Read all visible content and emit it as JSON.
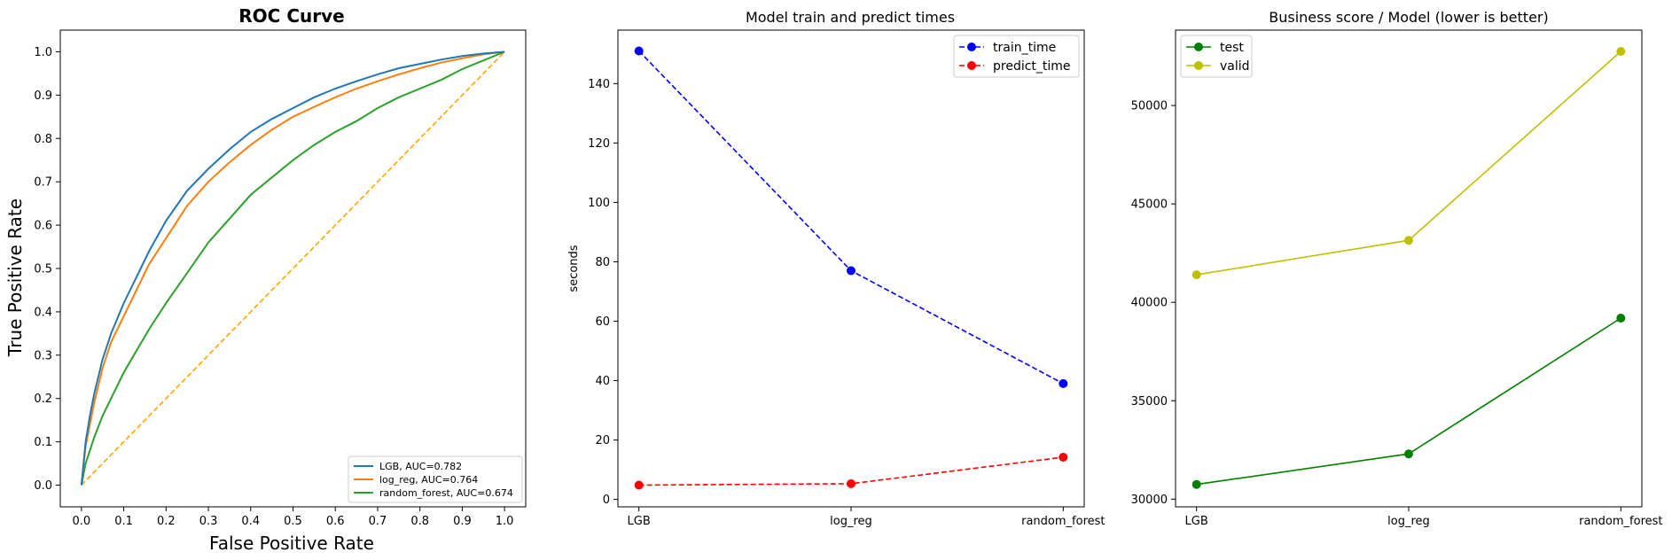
{
  "chart_data": [
    {
      "type": "line",
      "title": "ROC Curve",
      "xlabel": "False Positive Rate",
      "ylabel": "True Positive Rate",
      "xlim": [
        -0.05,
        1.05
      ],
      "ylim": [
        -0.05,
        1.05
      ],
      "xticks": [
        "0.0",
        "0.1",
        "0.2",
        "0.3",
        "0.4",
        "0.5",
        "0.6",
        "0.7",
        "0.8",
        "0.9",
        "1.0"
      ],
      "yticks": [
        "0.0",
        "0.1",
        "0.2",
        "0.3",
        "0.4",
        "0.5",
        "0.6",
        "0.7",
        "0.8",
        "0.9",
        "1.0"
      ],
      "legend_position": "lower-right",
      "series": [
        {
          "name": "LGB, AUC=0.782",
          "color": "#1f77b4",
          "x": [
            0,
            0.01,
            0.02,
            0.03,
            0.05,
            0.07,
            0.1,
            0.13,
            0.16,
            0.2,
            0.25,
            0.3,
            0.35,
            0.4,
            0.45,
            0.5,
            0.55,
            0.6,
            0.65,
            0.7,
            0.75,
            0.8,
            0.85,
            0.9,
            0.95,
            1.0
          ],
          "y": [
            0,
            0.1,
            0.16,
            0.21,
            0.29,
            0.35,
            0.42,
            0.48,
            0.54,
            0.61,
            0.68,
            0.73,
            0.775,
            0.815,
            0.845,
            0.87,
            0.895,
            0.915,
            0.932,
            0.948,
            0.962,
            0.972,
            0.982,
            0.99,
            0.996,
            1.0
          ]
        },
        {
          "name": "log_reg, AUC=0.764",
          "color": "#ff7f0e",
          "x": [
            0,
            0.01,
            0.02,
            0.03,
            0.05,
            0.07,
            0.1,
            0.13,
            0.16,
            0.2,
            0.25,
            0.3,
            0.35,
            0.4,
            0.45,
            0.5,
            0.55,
            0.6,
            0.65,
            0.7,
            0.75,
            0.8,
            0.85,
            0.9,
            0.95,
            1.0
          ],
          "y": [
            0,
            0.09,
            0.14,
            0.19,
            0.27,
            0.33,
            0.39,
            0.45,
            0.51,
            0.57,
            0.645,
            0.7,
            0.745,
            0.785,
            0.82,
            0.85,
            0.873,
            0.895,
            0.915,
            0.932,
            0.948,
            0.962,
            0.975,
            0.985,
            0.994,
            1.0
          ]
        },
        {
          "name": "random_forest, AUC=0.674",
          "color": "#2ca02c",
          "x": [
            0,
            0.01,
            0.02,
            0.03,
            0.05,
            0.07,
            0.1,
            0.13,
            0.16,
            0.2,
            0.25,
            0.3,
            0.35,
            0.4,
            0.45,
            0.5,
            0.55,
            0.6,
            0.65,
            0.7,
            0.75,
            0.8,
            0.85,
            0.9,
            0.95,
            1.0
          ],
          "y": [
            0,
            0.05,
            0.08,
            0.11,
            0.16,
            0.2,
            0.26,
            0.31,
            0.36,
            0.42,
            0.49,
            0.56,
            0.615,
            0.67,
            0.71,
            0.75,
            0.785,
            0.815,
            0.84,
            0.87,
            0.895,
            0.915,
            0.935,
            0.96,
            0.98,
            1.0
          ]
        },
        {
          "name": "",
          "color": "#ffa500",
          "dashed": true,
          "x": [
            0,
            1
          ],
          "y": [
            0,
            1
          ]
        }
      ]
    },
    {
      "type": "line",
      "title": "Model train and predict times",
      "xlabel": "",
      "ylabel": "seconds",
      "categories": [
        "LGB",
        "log_reg",
        "random_forest"
      ],
      "ylim": [
        -2.5,
        158
      ],
      "yticks": [
        0,
        20,
        40,
        60,
        80,
        100,
        120,
        140
      ],
      "legend_position": "top-right",
      "series": [
        {
          "name": "train_time",
          "color": "#0000ff",
          "dashed": true,
          "values": [
            151,
            77,
            39
          ]
        },
        {
          "name": "predict_time",
          "color": "#ff0000",
          "dashed": true,
          "values": [
            4.8,
            5.3,
            14.2
          ]
        }
      ]
    },
    {
      "type": "line",
      "title": "Business score / Model (lower is better)",
      "xlabel": "",
      "ylabel": "",
      "categories": [
        "LGB",
        "log_reg",
        "random_forest"
      ],
      "ylim": [
        29610,
        53830
      ],
      "yticks": [
        30000,
        35000,
        40000,
        45000,
        50000
      ],
      "legend_position": "top-left",
      "series": [
        {
          "name": "test",
          "color": "#008000",
          "values": [
            30750,
            32300,
            39200
          ]
        },
        {
          "name": "valid",
          "color": "#bfbf00",
          "values": [
            41400,
            43150,
            52750
          ]
        }
      ]
    }
  ]
}
